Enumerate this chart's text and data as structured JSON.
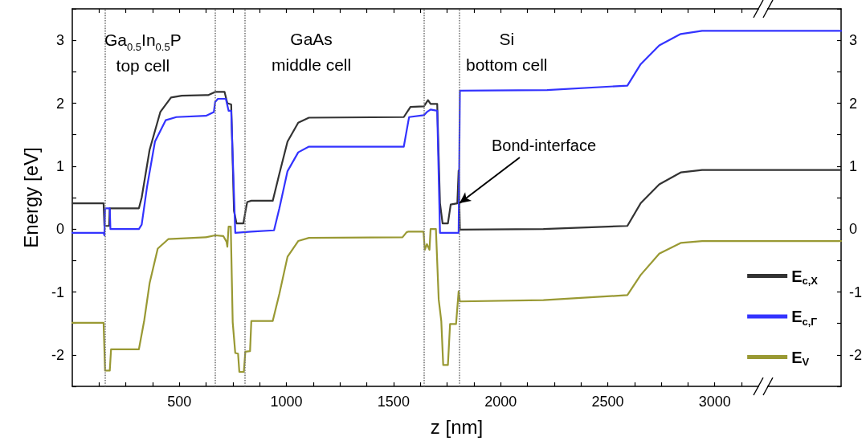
{
  "chart_data": {
    "type": "line",
    "xlabel": "z [nm]",
    "ylabel": "Energy [eV]",
    "xlim": [
      0,
      3590
    ],
    "xticks": [
      {
        "value": 125,
        "label": null
      },
      {
        "value": 250,
        "label": null
      },
      {
        "value": 375,
        "label": null
      },
      500,
      {
        "value": 625,
        "label": null
      },
      {
        "value": 750,
        "label": null
      },
      {
        "value": 875,
        "label": null
      },
      1000,
      {
        "value": 1125,
        "label": null
      },
      {
        "value": 1250,
        "label": null
      },
      {
        "value": 1375,
        "label": null
      },
      1500,
      {
        "value": 1625,
        "label": null
      },
      {
        "value": 1750,
        "label": null
      },
      {
        "value": 1875,
        "label": null
      },
      2000,
      {
        "value": 2125,
        "label": null
      },
      {
        "value": 2250,
        "label": null
      },
      {
        "value": 2375,
        "label": null
      },
      2500,
      {
        "value": 2625,
        "label": null
      },
      {
        "value": 2750,
        "label": null
      },
      {
        "value": 2875,
        "label": null
      },
      3000,
      {
        "value": 3125,
        "label": null
      }
    ],
    "ylim": [
      -2.5,
      3.5
    ],
    "yticks": [
      {
        "value": -2.5,
        "label": null
      },
      -2,
      {
        "value": -1.5,
        "label": null
      },
      -1,
      {
        "value": -0.5,
        "label": null
      },
      0,
      {
        "value": 0.5,
        "label": null
      },
      1,
      {
        "value": 1.5,
        "label": null
      },
      2,
      {
        "value": 2.5,
        "label": null
      },
      3,
      {
        "value": 3.5,
        "label": null
      }
    ],
    "y2lim": [
      -2.5,
      3.5
    ],
    "y2ticks": [
      {
        "value": -2.5,
        "label": null
      },
      -2,
      {
        "value": -1.5,
        "label": null
      },
      -1,
      {
        "value": -0.5,
        "label": null
      },
      0,
      {
        "value": 0.5,
        "label": null
      },
      1,
      {
        "value": 1.5,
        "label": null
      },
      2,
      {
        "value": 2.5,
        "label": null
      },
      3,
      {
        "value": 3.5,
        "label": null
      }
    ],
    "grid": false,
    "legend": "bottom right",
    "marker": "none",
    "line_style": "solid",
    "series": [
      {
        "name": "E$_{c,X}$",
        "color": "#333333",
        "x": [
          0,
          146,
          150,
          172,
          175,
          311,
          324,
          361,
          411,
          461,
          511,
          636,
          667,
          711,
          724,
          742,
          755,
          767,
          799,
          811,
          817,
          836,
          936,
          967,
          1005,
          1055,
          1105,
          1548,
          1579,
          1642,
          1661,
          1673,
          1704,
          1717,
          1729,
          1754,
          1767,
          1798,
          1804,
          1810,
          2200,
          2592,
          2654,
          2741,
          2841,
          2941,
          3590
        ],
        "values": [
          0.41,
          0.41,
          0.05,
          0.05,
          0.33,
          0.33,
          0.5,
          1.26,
          1.86,
          2.09,
          2.12,
          2.13,
          2.18,
          2.18,
          2.0,
          1.98,
          0.29,
          0.09,
          0.09,
          0.33,
          0.43,
          0.45,
          0.45,
          0.88,
          1.39,
          1.69,
          1.77,
          1.78,
          1.94,
          1.95,
          2.05,
          1.99,
          1.99,
          0.41,
          0.09,
          0.09,
          0.39,
          0.41,
          0.93,
          -0.01,
          0.0,
          0.05,
          0.41,
          0.71,
          0.9,
          0.94,
          0.94
        ]
      },
      {
        "name": "E$_{c,Γ}$",
        "color": "#3333ff",
        "x": [
          0,
          146,
          150,
          153,
          175,
          178,
          311,
          324,
          349,
          386,
          436,
          486,
          624,
          661,
          667,
          680,
          717,
          730,
          742,
          761,
          836,
          942,
          967,
          1005,
          1055,
          1105,
          1548,
          1570,
          1573,
          1642,
          1656,
          1673,
          1704,
          1717,
          1804,
          1810,
          2217,
          2592,
          2654,
          2741,
          2841,
          2941,
          3590
        ],
        "values": [
          -0.06,
          -0.06,
          -0.1,
          0.33,
          0.33,
          0.0,
          0.0,
          0.07,
          0.67,
          1.39,
          1.73,
          1.78,
          1.8,
          1.86,
          2.02,
          2.07,
          2.07,
          1.88,
          1.88,
          -0.06,
          -0.04,
          -0.02,
          0.33,
          0.92,
          1.22,
          1.31,
          1.31,
          1.73,
          1.78,
          1.81,
          1.86,
          1.9,
          1.88,
          -0.06,
          -0.06,
          2.2,
          2.21,
          2.28,
          2.62,
          2.92,
          3.1,
          3.15,
          3.15
        ]
      },
      {
        "name": "E$_{V}$",
        "color": "#999933",
        "x": [
          0,
          146,
          153,
          175,
          181,
          311,
          336,
          361,
          399,
          448,
          624,
          667,
          705,
          720,
          724,
          730,
          740,
          749,
          761,
          774,
          780,
          801,
          808,
          830,
          836,
          936,
          967,
          1005,
          1055,
          1105,
          1542,
          1561,
          1570,
          1640,
          1646,
          1656,
          1668,
          1673,
          1698,
          1711,
          1723,
          1732,
          1754,
          1764,
          1792,
          1804,
          1810,
          2200,
          2592,
          2654,
          2741,
          2841,
          2941,
          3590
        ],
        "values": [
          -1.49,
          -1.49,
          -2.25,
          -2.25,
          -1.91,
          -1.91,
          -1.45,
          -0.86,
          -0.31,
          -0.16,
          -0.13,
          -0.1,
          -0.11,
          -0.2,
          -0.28,
          0.04,
          0.04,
          -1.48,
          -1.97,
          -1.98,
          -2.27,
          -2.27,
          -1.95,
          -1.94,
          -1.46,
          -1.46,
          -1.03,
          -0.44,
          -0.19,
          -0.14,
          -0.13,
          -0.05,
          -0.04,
          -0.04,
          -0.33,
          -0.24,
          -0.33,
          0.0,
          0.0,
          -1.12,
          -1.46,
          -2.16,
          -2.16,
          -1.51,
          -1.51,
          -0.99,
          -1.15,
          -1.13,
          -1.05,
          -0.73,
          -0.39,
          -0.22,
          -0.19,
          -0.19
        ]
      }
    ],
    "ref_lines": [
      {
        "axis": "x",
        "value": 153,
        "color": "#777777",
        "line_style": "dotted"
      },
      {
        "axis": "x",
        "value": 667,
        "color": "#777777",
        "line_style": "dotted"
      },
      {
        "axis": "x",
        "value": 805,
        "color": "#777777",
        "line_style": "dotted"
      },
      {
        "axis": "x",
        "value": 1642,
        "color": "#777777",
        "line_style": "dotted"
      },
      {
        "axis": "x",
        "value": 1808,
        "color": "#777777",
        "line_style": "dotted"
      }
    ],
    "annotations": [
      "Ga$_{0.5}$In$_{0.5}$P\ntop cell",
      "GaAs\nmiddle cell",
      "Si\nbottom cell",
      {
        "text": "Bond-interface",
        "x": 1808,
        "y": 0.41
      }
    ]
  }
}
